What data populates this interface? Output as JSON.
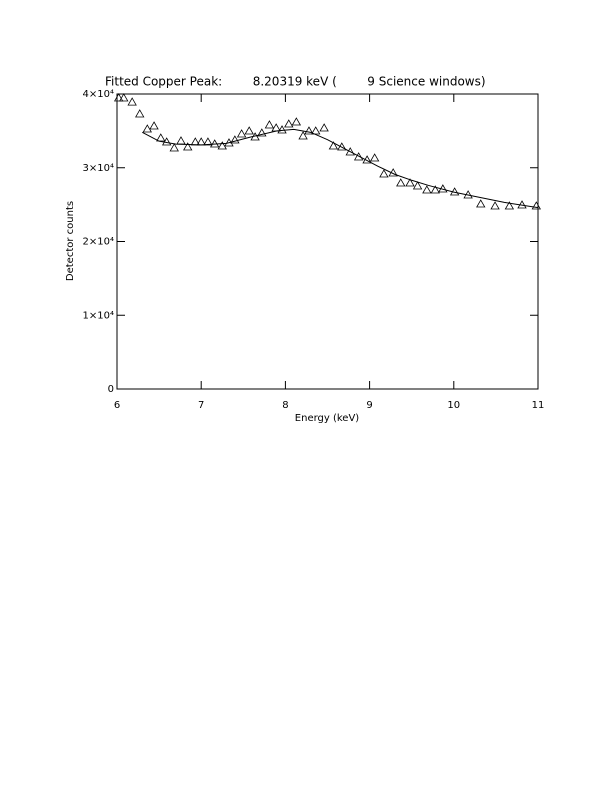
{
  "chart_data": {
    "type": "scatter",
    "title": "Fitted Copper Peak:        8.20319 keV (        9 Science windows)",
    "x_label": "Energy (keV)",
    "y_label": "Detector counts",
    "xlim": [
      6,
      11
    ],
    "xticks": [
      6,
      7,
      8,
      9,
      10,
      11
    ],
    "ylim": [
      0,
      40000
    ],
    "yticks": [
      0,
      {
        "value": 10000,
        "label": "1×10⁴"
      },
      {
        "value": 20000,
        "label": "2×10⁴"
      },
      {
        "value": 30000,
        "label": "3×10⁴"
      },
      {
        "value": 40000,
        "label": "4×10⁴"
      }
    ],
    "series": [
      {
        "type": "scatter",
        "marker": "triangle",
        "color": "#000000",
        "x": [
          6.02,
          6.08,
          6.18,
          6.27,
          6.36,
          6.44,
          6.52,
          6.59,
          6.68,
          6.76,
          6.84,
          6.93,
          7.0,
          7.08,
          7.16,
          7.25,
          7.33,
          7.4,
          7.48,
          7.57,
          7.64,
          7.72,
          7.81,
          7.89,
          7.96,
          8.04,
          8.13,
          8.21,
          8.28,
          8.36,
          8.46,
          8.57,
          8.67,
          8.77,
          8.87,
          8.97,
          9.06,
          9.17,
          9.28,
          9.37,
          9.48,
          9.57,
          9.68,
          9.78,
          9.87,
          10.01,
          10.17,
          10.32,
          10.49,
          10.66,
          10.81,
          10.98
        ],
        "values": [
          39460,
          39460,
          38900,
          37290,
          35250,
          35660,
          34030,
          33490,
          32680,
          33630,
          32810,
          33490,
          33490,
          33490,
          33220,
          32950,
          33360,
          33760,
          34580,
          34980,
          34170,
          34710,
          35800,
          35390,
          35120,
          35930,
          36200,
          34310,
          34980,
          34980,
          35390,
          32950,
          32810,
          32140,
          31460,
          31050,
          31320,
          29150,
          29290,
          27930,
          27930,
          27530,
          26980,
          26980,
          27120,
          26710,
          26310,
          25080,
          24810,
          24810,
          24950,
          24810
        ]
      },
      {
        "type": "line",
        "color": "#000000",
        "x": [
          6.3,
          6.5,
          6.7,
          7.0,
          7.3,
          7.6,
          7.9,
          8.1,
          8.3,
          8.5,
          8.7,
          8.9,
          9.1,
          9.3,
          9.5,
          9.7,
          10.0,
          10.3,
          10.6,
          11.0
        ],
        "values": [
          34800,
          33600,
          33200,
          33100,
          33300,
          34200,
          35000,
          35200,
          34800,
          33800,
          32600,
          31400,
          30200,
          29100,
          28300,
          27600,
          26700,
          26000,
          25300,
          24600
        ]
      }
    ]
  }
}
